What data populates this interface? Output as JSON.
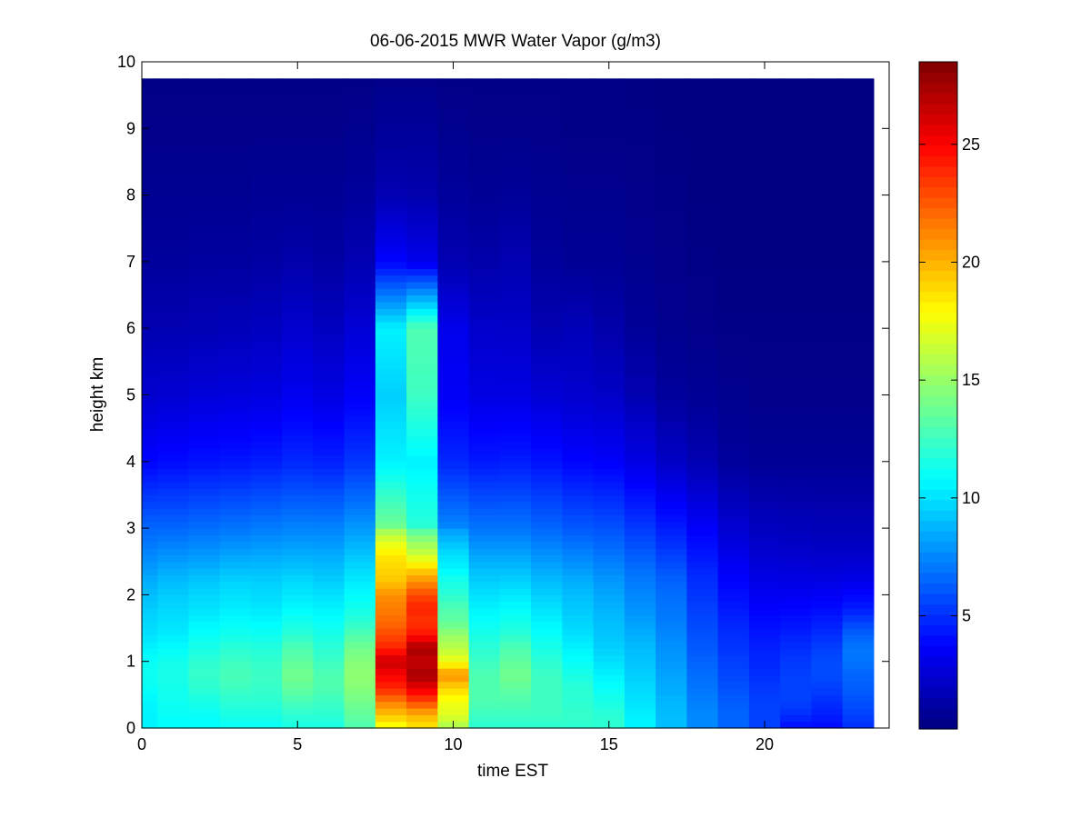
{
  "chart_data": {
    "type": "heatmap",
    "title": "06-06-2015 MWR Water Vapor (g/m3)",
    "xlabel": "time EST",
    "ylabel": "height km",
    "xlim": [
      0,
      24
    ],
    "ylim": [
      0,
      10
    ],
    "xticks": [
      "0",
      "5",
      "10",
      "15",
      "20"
    ],
    "yticks": [
      "0",
      "1",
      "2",
      "3",
      "4",
      "5",
      "6",
      "7",
      "8",
      "9",
      "10"
    ],
    "colorbar": {
      "colormap": "jet",
      "range": [
        0.2,
        28.5
      ],
      "ticks": [
        "5",
        "10",
        "15",
        "20",
        "25"
      ]
    },
    "grid": false,
    "time_columns": [
      0,
      1,
      2,
      3,
      4,
      5,
      6,
      7,
      8,
      9,
      10,
      11,
      12,
      13,
      14,
      15,
      16,
      17,
      18,
      19,
      20,
      21,
      22,
      23
    ],
    "data_top_km": 9.75,
    "profiles": {
      "low_heights_km": [
        0,
        0.2,
        0.4,
        0.6,
        0.8,
        1.0,
        1.2,
        1.4,
        1.6,
        1.8,
        2.0,
        2.2,
        2.4,
        2.6,
        2.8,
        3.0
      ],
      "low_values": [
        [
          10.5,
          10.5,
          10.6,
          11.0,
          11.2,
          11.0,
          10.5,
          10.0,
          9.7,
          9.4,
          9.0,
          8.6,
          8.0,
          7.5,
          7.0,
          6.6
        ],
        [
          10.8,
          11.0,
          11.2,
          11.3,
          11.5,
          11.3,
          10.8,
          10.3,
          10.0,
          9.7,
          9.4,
          9.0,
          8.4,
          7.8,
          7.2,
          6.6
        ],
        [
          10.8,
          11.0,
          11.5,
          12.0,
          12.3,
          12.0,
          11.5,
          11.0,
          10.5,
          10.0,
          9.7,
          9.3,
          8.6,
          8.0,
          7.4,
          6.8
        ],
        [
          11.0,
          11.5,
          12.0,
          12.5,
          12.8,
          12.5,
          12.0,
          11.3,
          10.8,
          10.3,
          10.0,
          9.6,
          9.0,
          8.3,
          7.6,
          7.0
        ],
        [
          11.0,
          11.5,
          12.0,
          12.3,
          12.5,
          12.2,
          11.8,
          11.2,
          10.7,
          10.2,
          9.8,
          9.5,
          9.0,
          8.4,
          7.8,
          7.2
        ],
        [
          11.5,
          12.0,
          12.8,
          13.5,
          14.0,
          13.5,
          13.0,
          12.0,
          11.3,
          10.7,
          10.2,
          9.8,
          9.2,
          8.6,
          8.0,
          7.4
        ],
        [
          11.5,
          12.0,
          12.5,
          13.0,
          13.0,
          12.5,
          12.0,
          11.5,
          11.0,
          10.5,
          10.0,
          9.5,
          9.0,
          8.5,
          7.9,
          7.4
        ],
        [
          13.0,
          13.5,
          14.0,
          14.5,
          14.8,
          14.5,
          14.0,
          13.0,
          12.0,
          11.3,
          10.8,
          10.3,
          9.8,
          9.2,
          8.6,
          8.0
        ],
        [
          17.5,
          19.5,
          21.5,
          24.0,
          25.0,
          26.5,
          24.0,
          23.0,
          22.0,
          21.5,
          21.0,
          19.5,
          19.0,
          18.5,
          17.0,
          15.0
        ],
        [
          18.5,
          20.0,
          23.0,
          25.5,
          27.5,
          26.5,
          27.5,
          24.5,
          23.5,
          24.0,
          23.0,
          21.0,
          19.0,
          16.5,
          15.0,
          13.0
        ],
        [
          15.5,
          17.0,
          17.5,
          19.0,
          21.0,
          17.5,
          16.0,
          15.0,
          13.5,
          13.0,
          12.0,
          11.5,
          10.5,
          10.0,
          9.0,
          8.0
        ],
        [
          12.0,
          12.5,
          13.0,
          13.0,
          13.0,
          12.5,
          12.0,
          11.5,
          11.0,
          10.5,
          10.0,
          9.5,
          9.0,
          8.3,
          7.6,
          7.0
        ],
        [
          12.0,
          12.5,
          13.0,
          13.5,
          14.0,
          13.5,
          13.0,
          12.0,
          11.3,
          10.8,
          10.2,
          9.6,
          9.0,
          8.3,
          7.6,
          7.0
        ],
        [
          12.0,
          12.5,
          12.5,
          12.5,
          12.5,
          12.0,
          11.5,
          11.0,
          10.5,
          10.0,
          9.5,
          9.0,
          8.4,
          7.8,
          7.2,
          6.6
        ],
        [
          12.0,
          12.3,
          12.0,
          12.0,
          11.5,
          11.0,
          10.5,
          10.0,
          9.6,
          9.3,
          9.0,
          8.6,
          8.0,
          7.4,
          6.8,
          6.2
        ],
        [
          12.0,
          12.0,
          11.5,
          11.0,
          10.5,
          10.0,
          9.5,
          9.2,
          9.0,
          8.7,
          8.4,
          8.0,
          7.5,
          7.0,
          6.5,
          6.0
        ],
        [
          10.5,
          10.5,
          10.0,
          9.8,
          9.5,
          9.2,
          9.0,
          8.6,
          8.2,
          7.8,
          7.5,
          7.2,
          6.8,
          6.3,
          5.8,
          5.3
        ],
        [
          9.0,
          9.0,
          8.8,
          8.5,
          8.3,
          8.0,
          7.8,
          7.5,
          7.2,
          7.0,
          6.8,
          6.5,
          6.0,
          5.5,
          5.0,
          4.5
        ],
        [
          7.5,
          7.5,
          7.3,
          7.0,
          6.8,
          6.5,
          6.2,
          6.0,
          5.7,
          5.5,
          5.2,
          5.0,
          4.7,
          4.3,
          4.0,
          3.6
        ],
        [
          6.5,
          6.5,
          6.3,
          6.0,
          5.7,
          5.5,
          5.2,
          5.0,
          4.7,
          4.4,
          4.1,
          3.8,
          3.5,
          3.2,
          2.8,
          2.5
        ],
        [
          5.5,
          5.5,
          5.5,
          5.3,
          5.0,
          4.8,
          4.6,
          4.3,
          4.0,
          3.7,
          3.4,
          3.1,
          2.8,
          2.5,
          2.2,
          2.0
        ],
        [
          4.0,
          5.0,
          5.5,
          5.5,
          5.5,
          5.3,
          5.0,
          4.6,
          4.2,
          3.8,
          3.4,
          3.0,
          2.7,
          2.4,
          2.1,
          1.9
        ],
        [
          4.0,
          4.5,
          5.0,
          5.5,
          5.8,
          5.8,
          5.5,
          5.0,
          4.5,
          4.0,
          3.5,
          3.0,
          2.6,
          2.3,
          2.0,
          1.8
        ],
        [
          5.0,
          5.5,
          6.0,
          6.3,
          6.5,
          7.0,
          7.0,
          6.5,
          5.5,
          4.5,
          3.8,
          3.2,
          2.7,
          2.3,
          2.0,
          1.8
        ]
      ],
      "upper_heights_km": [
        3.0,
        4.0,
        5.0,
        6.0,
        7.0,
        8.0,
        9.0,
        9.75
      ],
      "upper_values": [
        [
          6.6,
          3.8,
          2.4,
          1.6,
          1.0,
          0.7,
          0.5,
          0.4
        ],
        [
          6.6,
          4.0,
          2.5,
          1.6,
          1.0,
          0.7,
          0.5,
          0.4
        ],
        [
          6.8,
          4.2,
          2.7,
          1.7,
          1.1,
          0.7,
          0.5,
          0.4
        ],
        [
          7.0,
          4.3,
          2.8,
          1.8,
          1.1,
          0.7,
          0.5,
          0.4
        ],
        [
          7.2,
          4.5,
          2.9,
          2.0,
          1.2,
          0.8,
          0.5,
          0.4
        ],
        [
          7.4,
          4.8,
          3.3,
          2.4,
          1.4,
          0.8,
          0.5,
          0.4
        ],
        [
          7.4,
          4.6,
          3.0,
          2.0,
          1.2,
          0.8,
          0.5,
          0.4
        ],
        [
          8.0,
          5.2,
          3.6,
          2.6,
          1.6,
          1.0,
          0.6,
          0.4
        ],
        [
          14.0,
          10.5,
          9.5,
          10.5,
          3.8,
          1.6,
          0.9,
          0.5
        ],
        [
          12.0,
          10.5,
          12.5,
          13.0,
          3.2,
          1.5,
          0.9,
          0.5
        ],
        [
          7.5,
          4.8,
          3.5,
          3.2,
          1.6,
          1.0,
          0.6,
          0.4
        ],
        [
          7.0,
          4.4,
          3.0,
          2.3,
          1.4,
          0.8,
          0.5,
          0.4
        ],
        [
          7.0,
          4.5,
          3.0,
          2.2,
          1.6,
          0.9,
          0.5,
          0.4
        ],
        [
          6.6,
          4.2,
          2.6,
          1.6,
          1.0,
          0.7,
          0.5,
          0.4
        ],
        [
          6.2,
          3.8,
          2.4,
          1.8,
          0.8,
          0.6,
          0.4,
          0.4
        ],
        [
          6.0,
          3.6,
          2.2,
          1.4,
          0.8,
          0.6,
          0.4,
          0.4
        ],
        [
          5.3,
          3.0,
          1.6,
          0.9,
          0.6,
          0.5,
          0.4,
          0.3
        ],
        [
          4.5,
          2.2,
          1.0,
          0.6,
          0.5,
          0.4,
          0.3,
          0.3
        ],
        [
          3.6,
          1.6,
          0.8,
          0.5,
          0.4,
          0.3,
          0.3,
          0.3
        ],
        [
          2.5,
          1.0,
          0.6,
          0.4,
          0.3,
          0.3,
          0.3,
          0.3
        ],
        [
          2.0,
          0.8,
          0.5,
          0.4,
          0.3,
          0.3,
          0.3,
          0.3
        ],
        [
          1.9,
          0.8,
          0.5,
          0.4,
          0.3,
          0.3,
          0.3,
          0.3
        ],
        [
          1.8,
          0.8,
          0.5,
          0.4,
          0.3,
          0.3,
          0.3,
          0.3
        ],
        [
          1.8,
          0.8,
          0.5,
          0.4,
          0.3,
          0.3,
          0.3,
          0.3
        ]
      ]
    }
  }
}
